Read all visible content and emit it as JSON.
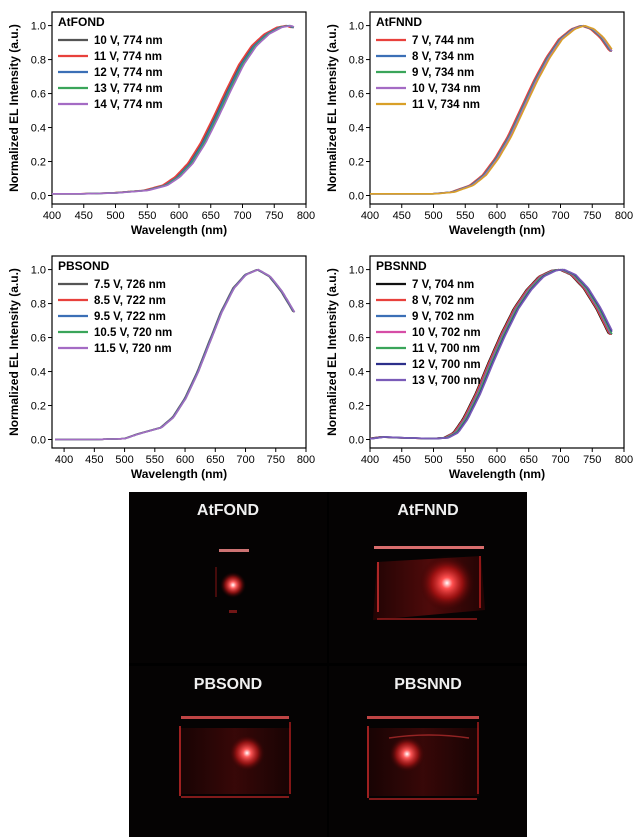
{
  "chart_data": [
    {
      "type": "line",
      "title": "AtFOND",
      "xlabel": "Wavelength (nm)",
      "ylabel": "Normalized EL Intensity (a.u.)",
      "xlim": [
        400,
        800
      ],
      "ylim": [
        -0.05,
        1.08
      ],
      "xticks": [
        "400",
        "450",
        "500",
        "550",
        "600",
        "650",
        "700",
        "750",
        "800"
      ],
      "yticks": [
        "0.0",
        "0.2",
        "0.4",
        "0.6",
        "0.8",
        "1.0"
      ],
      "legend_position": "top-left",
      "series": [
        {
          "name": "10 V,  774 nm",
          "color": "#555555",
          "shift": 4,
          "peak": 774
        },
        {
          "name": "11 V,  774 nm",
          "color": "#e8413c",
          "shift": 6,
          "peak": 774
        },
        {
          "name": "12 V,  774 nm",
          "color": "#3b6fb6",
          "shift": 2,
          "peak": 774
        },
        {
          "name": "13 V,  774 nm",
          "color": "#3aa55a",
          "shift": 0,
          "peak": 774
        },
        {
          "name": "14 V,  774 nm",
          "color": "#a46bc4",
          "shift": -2,
          "peak": 774
        }
      ],
      "base_curve": [
        [
          400,
          0.01
        ],
        [
          450,
          0.01
        ],
        [
          500,
          0.015
        ],
        [
          550,
          0.03
        ],
        [
          580,
          0.06
        ],
        [
          600,
          0.11
        ],
        [
          620,
          0.19
        ],
        [
          640,
          0.31
        ],
        [
          660,
          0.46
        ],
        [
          680,
          0.62
        ],
        [
          700,
          0.77
        ],
        [
          720,
          0.88
        ],
        [
          740,
          0.95
        ],
        [
          760,
          0.99
        ],
        [
          775,
          1.0
        ],
        [
          780,
          0.99
        ]
      ]
    },
    {
      "type": "line",
      "title": "AtFNND",
      "xlabel": "Wavelength (nm)",
      "ylabel": "Normalized EL Intensity (a.u.)",
      "xlim": [
        400,
        800
      ],
      "ylim": [
        -0.05,
        1.08
      ],
      "xticks": [
        "400",
        "450",
        "500",
        "550",
        "600",
        "650",
        "700",
        "750",
        "800"
      ],
      "yticks": [
        "0.0",
        "0.2",
        "0.4",
        "0.6",
        "0.8",
        "1.0"
      ],
      "legend_position": "top-left",
      "series": [
        {
          "name": "7 V,  744 nm",
          "color": "#e8413c",
          "shift": 3,
          "peak": 744
        },
        {
          "name": "8 V,  734 nm",
          "color": "#3b6fb6",
          "shift": 1,
          "peak": 734
        },
        {
          "name": "9 V,  734 nm",
          "color": "#3aa55a",
          "shift": 0,
          "peak": 734
        },
        {
          "name": "10 V,  734 nm",
          "color": "#a46bc4",
          "shift": -1,
          "peak": 734
        },
        {
          "name": "11 V,  734 nm",
          "color": "#d9a028",
          "shift": -3,
          "peak": 734
        }
      ],
      "base_curve": [
        [
          400,
          0.01
        ],
        [
          450,
          0.01
        ],
        [
          500,
          0.01
        ],
        [
          530,
          0.02
        ],
        [
          560,
          0.06
        ],
        [
          580,
          0.12
        ],
        [
          600,
          0.22
        ],
        [
          620,
          0.35
        ],
        [
          640,
          0.51
        ],
        [
          660,
          0.67
        ],
        [
          680,
          0.81
        ],
        [
          700,
          0.92
        ],
        [
          720,
          0.98
        ],
        [
          735,
          1.0
        ],
        [
          750,
          0.98
        ],
        [
          765,
          0.93
        ],
        [
          780,
          0.85
        ]
      ]
    },
    {
      "type": "line",
      "title": "PBSOND",
      "xlabel": "Wavelength (nm)",
      "ylabel": "Normalized EL Intensity (a.u.)",
      "xlim": [
        380,
        800
      ],
      "ylim": [
        -0.05,
        1.08
      ],
      "xticks": [
        "400",
        "450",
        "500",
        "550",
        "600",
        "650",
        "700",
        "750",
        "800"
      ],
      "yticks": [
        "0.0",
        "0.2",
        "0.4",
        "0.6",
        "0.8",
        "1.0"
      ],
      "legend_position": "top-left",
      "series": [
        {
          "name": "7.5 V,  726 nm",
          "color": "#555555",
          "shift": 1,
          "peak": 726
        },
        {
          "name": "8.5 V,  722 nm",
          "color": "#e8413c",
          "shift": 0,
          "peak": 722
        },
        {
          "name": "9.5 V,  722 nm",
          "color": "#3b6fb6",
          "shift": 0,
          "peak": 722
        },
        {
          "name": "10.5 V,  720 nm",
          "color": "#3aa55a",
          "shift": -1,
          "peak": 720
        },
        {
          "name": "11.5 V,  720 nm",
          "color": "#a46bc4",
          "shift": -1,
          "peak": 720
        }
      ],
      "base_curve": [
        [
          380,
          0.0
        ],
        [
          400,
          0.0
        ],
        [
          450,
          0.0
        ],
        [
          500,
          0.005
        ],
        [
          520,
          0.03
        ],
        [
          540,
          0.05
        ],
        [
          560,
          0.07
        ],
        [
          580,
          0.13
        ],
        [
          600,
          0.24
        ],
        [
          620,
          0.39
        ],
        [
          640,
          0.57
        ],
        [
          660,
          0.75
        ],
        [
          680,
          0.89
        ],
        [
          700,
          0.97
        ],
        [
          720,
          1.0
        ],
        [
          740,
          0.96
        ],
        [
          760,
          0.87
        ],
        [
          780,
          0.75
        ]
      ]
    },
    {
      "type": "line",
      "title": "PBSNND",
      "xlabel": "Wavelength (nm)",
      "ylabel": "Normalized EL Intensity (a.u.)",
      "xlim": [
        400,
        800
      ],
      "ylim": [
        -0.05,
        1.08
      ],
      "xticks": [
        "400",
        "450",
        "500",
        "550",
        "600",
        "650",
        "700",
        "750",
        "800"
      ],
      "yticks": [
        "0.0",
        "0.2",
        "0.4",
        "0.6",
        "0.8",
        "1.0"
      ],
      "legend_position": "top-left",
      "series": [
        {
          "name": "7 V,  704 nm",
          "color": "#111111",
          "shift": 4,
          "peak": 704
        },
        {
          "name": "8 V,  702 nm",
          "color": "#e8413c",
          "shift": 3,
          "peak": 702
        },
        {
          "name": "9 V,  702 nm",
          "color": "#3b6fb6",
          "shift": 1,
          "peak": 702
        },
        {
          "name": "10 V,  702 nm",
          "color": "#d64da6",
          "shift": 0,
          "peak": 702
        },
        {
          "name": "11 V,  700 nm",
          "color": "#3aa55a",
          "shift": -1,
          "peak": 700
        },
        {
          "name": "12 V,  700 nm",
          "color": "#2c2f8a",
          "shift": -3,
          "peak": 700
        },
        {
          "name": "13 V,  700 nm",
          "color": "#7a5bb8",
          "shift": -4,
          "peak": 700
        }
      ],
      "base_curve": [
        [
          400,
          0.005
        ],
        [
          420,
          0.015
        ],
        [
          450,
          0.01
        ],
        [
          500,
          0.005
        ],
        [
          520,
          0.01
        ],
        [
          535,
          0.04
        ],
        [
          550,
          0.12
        ],
        [
          570,
          0.27
        ],
        [
          590,
          0.45
        ],
        [
          610,
          0.62
        ],
        [
          630,
          0.77
        ],
        [
          650,
          0.88
        ],
        [
          670,
          0.96
        ],
        [
          690,
          0.995
        ],
        [
          702,
          1.0
        ],
        [
          720,
          0.97
        ],
        [
          740,
          0.89
        ],
        [
          760,
          0.77
        ],
        [
          780,
          0.62
        ]
      ]
    }
  ],
  "photos": [
    {
      "label": "AtFOND"
    },
    {
      "label": "AtFNND"
    },
    {
      "label": "PBSOND"
    },
    {
      "label": "PBSNND"
    }
  ]
}
